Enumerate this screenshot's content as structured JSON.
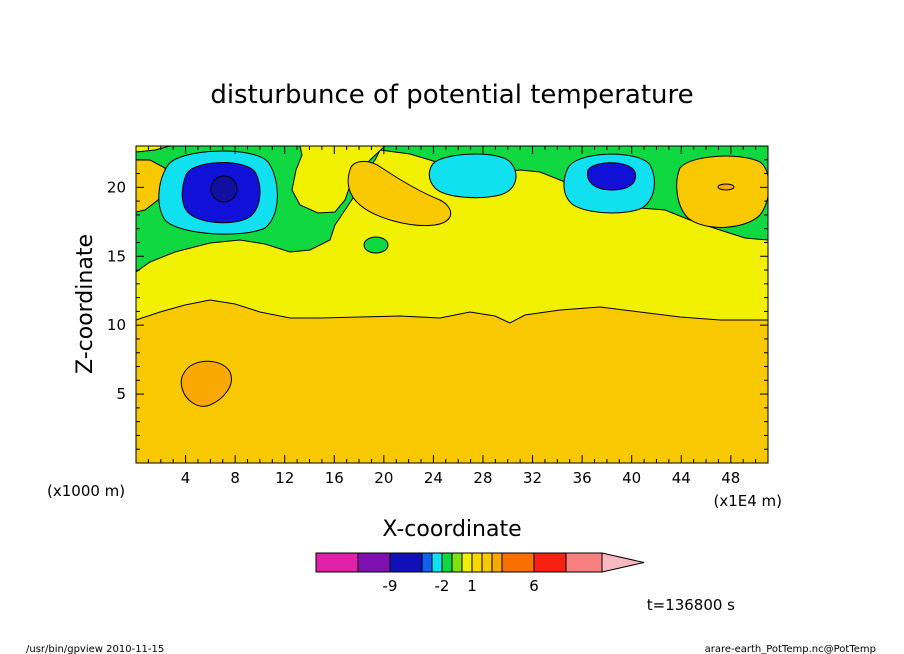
{
  "chart_data": {
    "type": "heatmap",
    "title": "disturbunce of potential temperature",
    "xlabel": "X-coordinate",
    "ylabel": "Z-coordinate",
    "x_unit_left": "(x1000 m)",
    "x_unit_right": "(x1E4 m)",
    "xlim": [
      0,
      51
    ],
    "ylim": [
      0,
      23
    ],
    "x_ticks": [
      "4",
      "8",
      "12",
      "16",
      "20",
      "24",
      "28",
      "32",
      "36",
      "40",
      "44",
      "48"
    ],
    "x_tick_values": [
      4,
      8,
      12,
      16,
      20,
      24,
      28,
      32,
      36,
      40,
      44,
      48
    ],
    "y_ticks": [
      "5",
      "10",
      "15",
      "20"
    ],
    "y_tick_values": [
      5,
      10,
      15,
      20
    ],
    "time_label": "t=136800 s",
    "colorbar": {
      "colors": [
        "#e020a8",
        "#8010b0",
        "#1010b8",
        "#1060f0",
        "#10e0f0",
        "#10d840",
        "#80e010",
        "#f0f000",
        "#f8d800",
        "#f8c800",
        "#f8a800",
        "#f87000",
        "#f82010",
        "#f88080",
        "#f8b8c0"
      ],
      "labels": [
        "-9",
        "-2",
        "1",
        "6"
      ]
    }
  },
  "footer": {
    "left": "/usr/bin/gpview   2010-11-15",
    "right": "arare-earth_PotTemp.nc@PotTemp"
  }
}
